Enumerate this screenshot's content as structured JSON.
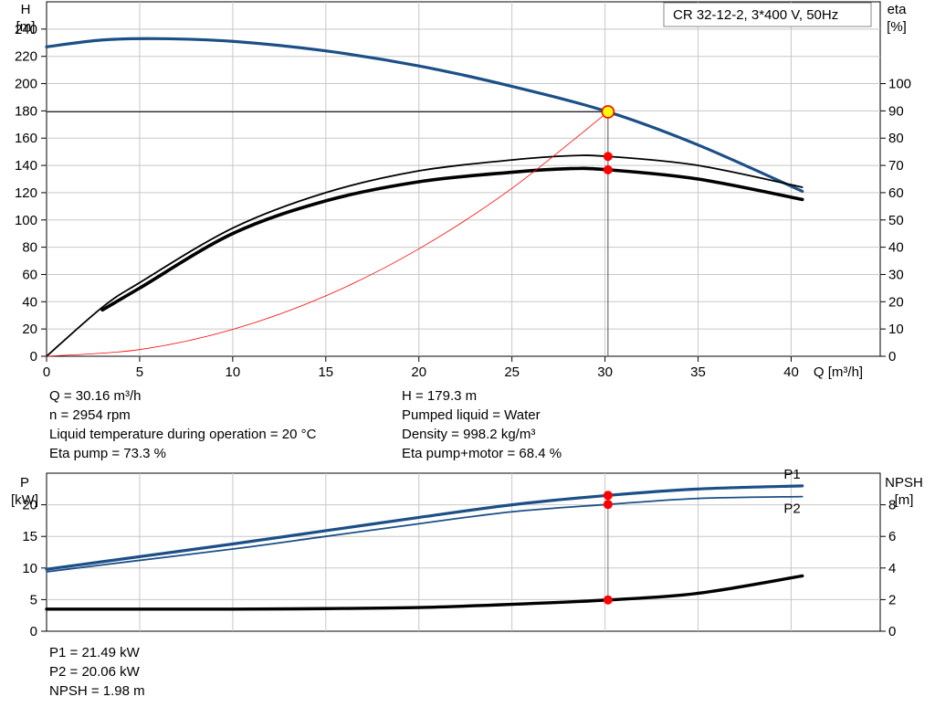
{
  "pump_label": "CR 32-12-2, 3*400 V, 50Hz",
  "colors": {
    "blue": "#1b4f86",
    "black": "#000000",
    "red": "#ff0000",
    "grid": "#c8c8c8",
    "op_point_fill": "#ffff00"
  },
  "info_top": {
    "left": [
      "Q = 30.16 m³/h",
      "n = 2954 rpm",
      "Liquid temperature during operation = 20 °C",
      "Eta pump = 73.3 %"
    ],
    "right": [
      "H = 179.3 m",
      "Pumped liquid = Water",
      "Density = 998.2 kg/m³",
      "Eta pump+motor = 68.4 %"
    ]
  },
  "info_bottom": [
    "P1 = 21.49 kW",
    "P2 = 20.06 kW",
    "NPSH = 1.98 m"
  ],
  "chart_data": [
    {
      "type": "line",
      "title": "",
      "xlabel": "Q [m³/h]",
      "ylabel": "H\n[m]",
      "y2label": "eta\n[%]",
      "xlim": [
        0,
        44
      ],
      "ylim": [
        0,
        260
      ],
      "y2lim": [
        0,
        130
      ],
      "xticks": [
        0,
        5,
        10,
        15,
        20,
        25,
        30,
        35,
        40
      ],
      "yticks": [
        0,
        20,
        40,
        60,
        80,
        100,
        120,
        140,
        160,
        180,
        200,
        220,
        240
      ],
      "y2ticks": [
        0,
        10,
        20,
        30,
        40,
        50,
        60,
        70,
        80,
        90,
        100
      ],
      "grid": true,
      "series": [
        {
          "axis": "y",
          "style": "head",
          "points": [
            [
              0,
              227
            ],
            [
              3,
              232
            ],
            [
              6,
              233
            ],
            [
              10,
              231
            ],
            [
              15,
              224
            ],
            [
              20,
              213
            ],
            [
              25,
              198
            ],
            [
              30.16,
              179.3
            ],
            [
              35,
              155
            ],
            [
              40.6,
              121
            ]
          ]
        },
        {
          "axis": "y2",
          "style": "eta-pump-thin",
          "points": [
            [
              0,
              0
            ],
            [
              3,
              18
            ],
            [
              5,
              27
            ],
            [
              10,
              47
            ],
            [
              15,
              60
            ],
            [
              20,
              68
            ],
            [
              25,
              72
            ],
            [
              28,
              73.5
            ],
            [
              30.16,
              73.3
            ],
            [
              35,
              70
            ],
            [
              40.6,
              62
            ]
          ]
        },
        {
          "axis": "y2",
          "style": "eta-pump-thick",
          "points": [
            [
              3,
              17
            ],
            [
              5,
              25
            ],
            [
              10,
              45
            ],
            [
              15,
              57
            ],
            [
              20,
              64
            ],
            [
              25,
              67.5
            ],
            [
              28,
              68.8
            ],
            [
              30.16,
              68.4
            ],
            [
              35,
              65
            ],
            [
              40.6,
              57.5
            ]
          ]
        },
        {
          "axis": "y",
          "style": "system-curve",
          "points": [
            [
              0,
              0
            ],
            [
              5,
              4.9
            ],
            [
              10,
              19.7
            ],
            [
              15,
              44.3
            ],
            [
              20,
              78.8
            ],
            [
              25,
              123.2
            ],
            [
              30.16,
              179.3
            ]
          ]
        }
      ],
      "points": [
        {
          "axis": "y",
          "x": 30.16,
          "y": 179.3,
          "kind": "operating-point"
        },
        {
          "axis": "y2",
          "x": 30.16,
          "y": 73.3,
          "kind": "marker"
        },
        {
          "axis": "y2",
          "x": 30.16,
          "y": 68.4,
          "kind": "marker"
        }
      ]
    },
    {
      "type": "line",
      "title": "",
      "xlabel": "",
      "ylabel": "P\n[kW]",
      "y2label": "NPSH\n[m]",
      "xlim": [
        0,
        44
      ],
      "ylim": [
        0,
        25
      ],
      "y2lim": [
        0,
        10
      ],
      "yticks": [
        0,
        5,
        10,
        15,
        20
      ],
      "y2ticks": [
        0,
        2,
        4,
        6,
        8
      ],
      "grid": true,
      "series": [
        {
          "name": "P1",
          "axis": "y",
          "style": "power-p1",
          "points": [
            [
              0,
              9.8
            ],
            [
              3,
              11
            ],
            [
              10,
              13.8
            ],
            [
              15,
              15.9
            ],
            [
              20,
              18
            ],
            [
              25,
              20
            ],
            [
              30.16,
              21.49
            ],
            [
              35,
              22.5
            ],
            [
              40.6,
              23
            ]
          ]
        },
        {
          "name": "P2",
          "axis": "y",
          "style": "power-p2",
          "points": [
            [
              0,
              9.4
            ],
            [
              3,
              10.5
            ],
            [
              10,
              13
            ],
            [
              15,
              15
            ],
            [
              20,
              17
            ],
            [
              25,
              18.9
            ],
            [
              30.16,
              20.06
            ],
            [
              35,
              21
            ],
            [
              40.6,
              21.3
            ]
          ]
        },
        {
          "axis": "y2",
          "style": "npsh",
          "points": [
            [
              0,
              1.4
            ],
            [
              3,
              1.4
            ],
            [
              10,
              1.4
            ],
            [
              15,
              1.43
            ],
            [
              20,
              1.5
            ],
            [
              25,
              1.7
            ],
            [
              30.16,
              1.98
            ],
            [
              35,
              2.4
            ],
            [
              40.6,
              3.5
            ]
          ]
        }
      ],
      "points": [
        {
          "axis": "y",
          "x": 30.16,
          "y": 21.49,
          "kind": "marker"
        },
        {
          "axis": "y",
          "x": 30.16,
          "y": 20.06,
          "kind": "marker"
        },
        {
          "axis": "y2",
          "x": 30.16,
          "y": 1.98,
          "kind": "marker"
        }
      ]
    }
  ]
}
